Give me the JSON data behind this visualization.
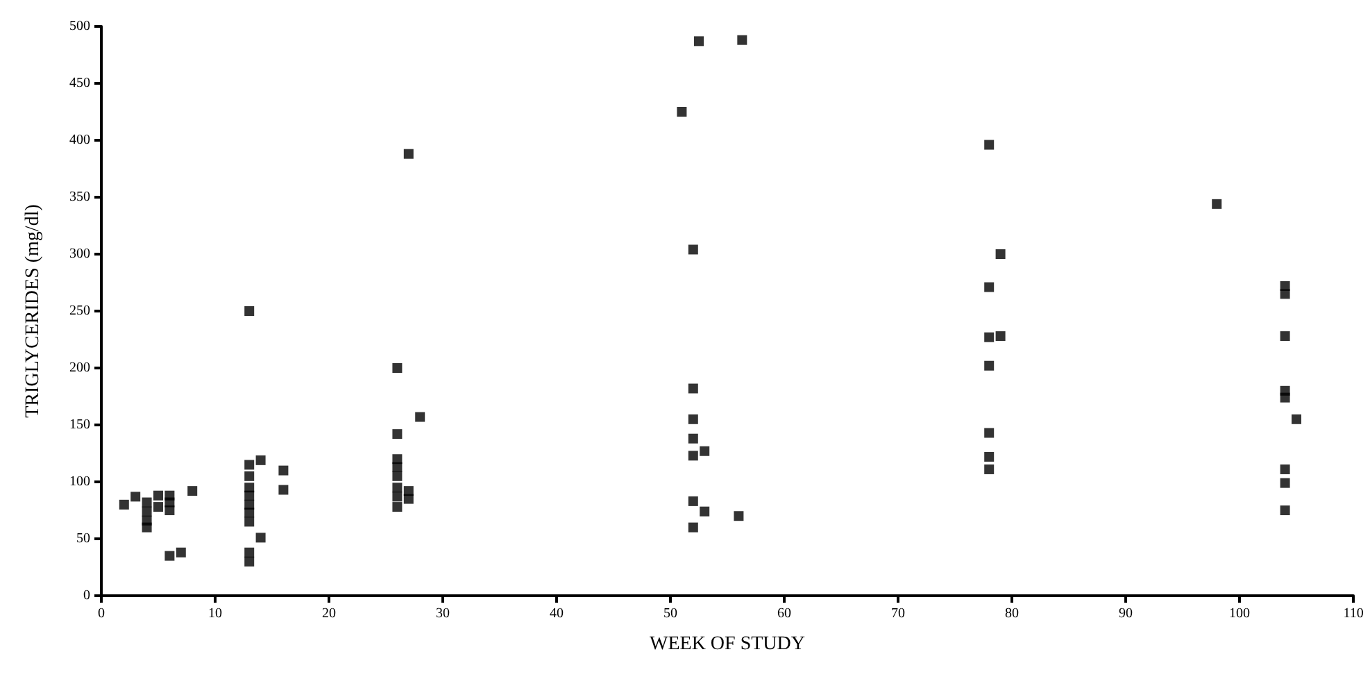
{
  "chart_data": {
    "type": "scatter",
    "xlabel": "WEEK OF STUDY",
    "ylabel": "TRIGLYCERIDES (mg/dl)",
    "x": [
      2,
      3,
      4,
      4,
      4,
      4,
      5,
      5,
      6,
      6,
      6,
      6,
      7,
      8,
      13,
      13,
      13,
      13,
      13,
      13,
      13,
      13,
      13,
      13,
      14,
      14,
      16,
      16,
      26,
      26,
      26,
      26,
      26,
      26,
      26,
      26,
      27,
      27,
      27,
      28,
      51,
      52.5,
      56.3,
      52,
      52,
      52,
      52,
      52,
      52,
      52,
      53,
      53,
      56,
      78,
      78,
      78,
      78,
      78,
      78,
      78,
      79,
      79,
      98,
      104,
      104,
      104,
      104,
      104,
      104,
      104,
      104,
      105
    ],
    "series": [
      {
        "color": "#000000",
        "values": [
          80,
          87,
          82,
          74,
          66,
          60,
          88,
          78,
          88,
          82,
          75,
          35,
          38,
          92,
          250,
          115,
          105,
          95,
          88,
          80,
          73,
          65,
          38,
          30,
          119,
          51,
          110,
          93,
          200,
          142,
          120,
          113,
          105,
          95,
          87,
          78,
          388,
          92,
          85,
          157,
          425,
          487,
          488,
          304,
          182,
          155,
          138,
          123,
          83,
          60,
          127,
          74,
          70,
          396,
          271,
          227,
          202,
          143,
          122,
          111,
          300,
          228,
          344,
          272,
          265,
          228,
          180,
          174,
          111,
          99,
          75,
          155
        ]
      }
    ],
    "xlim": [
      0,
      110
    ],
    "xticks": [
      0,
      10,
      20,
      30,
      40,
      50,
      60,
      70,
      80,
      90,
      100,
      110
    ],
    "ylim": [
      0,
      500
    ],
    "yticks": [
      0,
      50,
      100,
      150,
      200,
      250,
      300,
      350,
      400,
      450,
      500
    ],
    "grid": false,
    "marker": "square"
  }
}
